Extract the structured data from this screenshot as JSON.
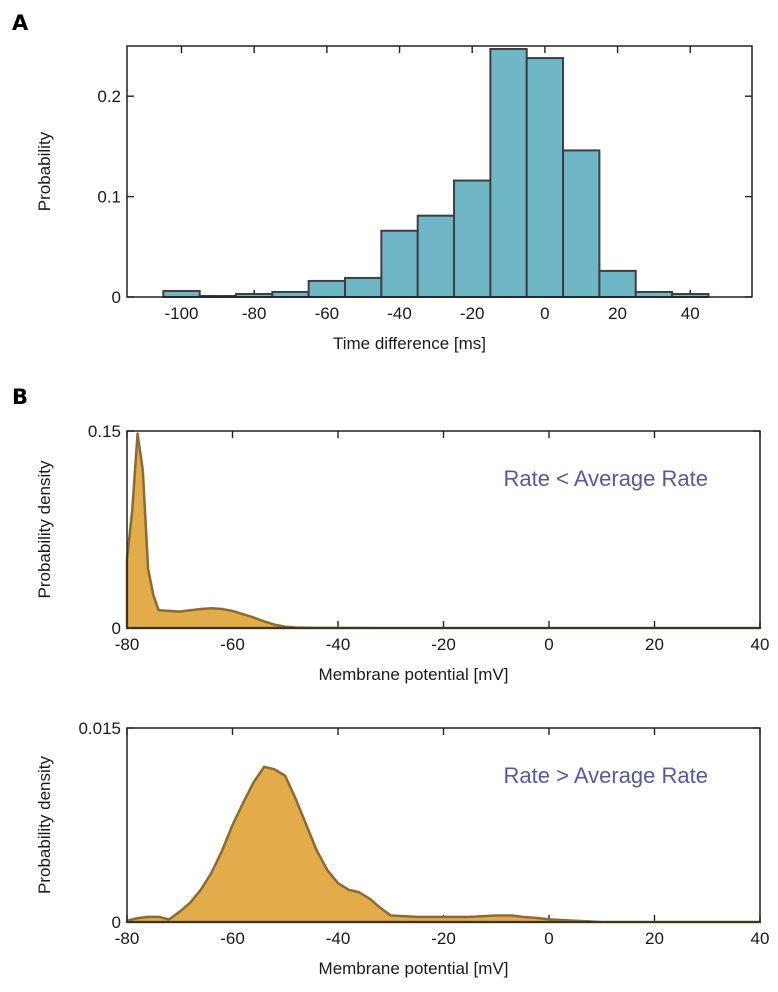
{
  "panels": {
    "a_label": "A",
    "b_label": "B"
  },
  "chart_data": [
    {
      "type": "bar",
      "panel": "A",
      "xlabel": "Time difference [ms]",
      "ylabel": "Probability",
      "xlim": [
        -115,
        57
      ],
      "ylim": [
        0,
        0.25
      ],
      "xticks": [
        -100,
        -80,
        -60,
        -40,
        -20,
        0,
        20,
        40
      ],
      "xtick_labels": [
        "-100",
        "-80",
        "-60",
        "-40",
        "-20",
        "0",
        "20",
        "40"
      ],
      "yticks": [
        0,
        0.1,
        0.2
      ],
      "ytick_labels": [
        "0",
        "0.1",
        "0.2"
      ],
      "bin_width": 10,
      "bin_starts": [
        -105,
        -95,
        -85,
        -75,
        -65,
        -55,
        -45,
        -35,
        -25,
        -15,
        -5,
        5,
        15,
        25,
        35
      ],
      "values": [
        0.006,
        0.001,
        0.003,
        0.005,
        0.016,
        0.019,
        0.066,
        0.081,
        0.116,
        0.247,
        0.238,
        0.146,
        0.026,
        0.005,
        0.003
      ],
      "colors": {
        "fill": "#6fb6c6",
        "edge": "#3f3f3f"
      }
    },
    {
      "type": "area",
      "panel": "B",
      "xlabel": "Membrane potential [mV]",
      "ylabel": "Probability density",
      "annotation": "Rate < Average Rate",
      "xlim": [
        -80,
        40
      ],
      "ylim": [
        0,
        0.15
      ],
      "xticks": [
        -80,
        -60,
        -40,
        -20,
        0,
        20,
        40
      ],
      "xtick_labels": [
        "-80",
        "-60",
        "-40",
        "-20",
        "0",
        "20",
        "40"
      ],
      "yticks": [
        0,
        0.15
      ],
      "ytick_labels": [
        "0",
        "0.15"
      ],
      "x": [
        -80,
        -79,
        -78,
        -77,
        -76,
        -75,
        -74,
        -72,
        -70,
        -68,
        -66,
        -64,
        -62,
        -60,
        -58,
        -56,
        -54,
        -52,
        -50,
        -48,
        -46,
        -44,
        -40,
        -30,
        -20,
        -10,
        0,
        10,
        20,
        30,
        40
      ],
      "y": [
        0.052,
        0.09,
        0.148,
        0.12,
        0.045,
        0.025,
        0.0135,
        0.013,
        0.0125,
        0.0135,
        0.0145,
        0.015,
        0.0145,
        0.013,
        0.0105,
        0.008,
        0.005,
        0.0025,
        0.001,
        0.0004,
        0.0002,
        0.0001,
        5e-05,
        2e-05,
        0.0,
        0.0,
        0.0,
        0.0,
        0.0,
        0.0,
        0.0
      ],
      "colors": {
        "fill": "#e1ac49",
        "edge": "#8c6b32",
        "annotation": "#5658a6"
      }
    },
    {
      "type": "area",
      "panel": "B",
      "xlabel": "Membrane potential [mV]",
      "ylabel": "Probability density",
      "annotation": "Rate > Average Rate",
      "xlim": [
        -80,
        40
      ],
      "ylim": [
        0,
        0.015
      ],
      "xticks": [
        -80,
        -60,
        -40,
        -20,
        0,
        20,
        40
      ],
      "xtick_labels": [
        "-80",
        "-60",
        "-40",
        "-20",
        "0",
        "20",
        "40"
      ],
      "yticks": [
        0,
        0.015
      ],
      "ytick_labels": [
        "0",
        "0.015"
      ],
      "x": [
        -80,
        -78,
        -76,
        -74,
        -72,
        -70,
        -68,
        -66,
        -64,
        -62,
        -60,
        -58,
        -56,
        -54,
        -52,
        -50,
        -48,
        -46,
        -44,
        -42,
        -40,
        -38,
        -36,
        -34,
        -32,
        -30,
        -25,
        -20,
        -15,
        -10,
        -7,
        -5,
        -2,
        0,
        5,
        10,
        20,
        30,
        40
      ],
      "y": [
        0.0001,
        0.0003,
        0.0004,
        0.0004,
        0.0002,
        0.0008,
        0.0015,
        0.0025,
        0.0038,
        0.0055,
        0.0075,
        0.0092,
        0.0108,
        0.012,
        0.0118,
        0.0113,
        0.0095,
        0.0075,
        0.0055,
        0.004,
        0.003,
        0.0025,
        0.0023,
        0.0018,
        0.0011,
        0.0005,
        0.0004,
        0.0004,
        0.0004,
        0.0005,
        0.0005,
        0.0004,
        0.0003,
        0.0002,
        0.0001,
        0.0,
        0.0,
        0.0,
        0.0
      ],
      "colors": {
        "fill": "#e1ac49",
        "edge": "#8c6b32",
        "annotation": "#5658a6"
      }
    }
  ]
}
